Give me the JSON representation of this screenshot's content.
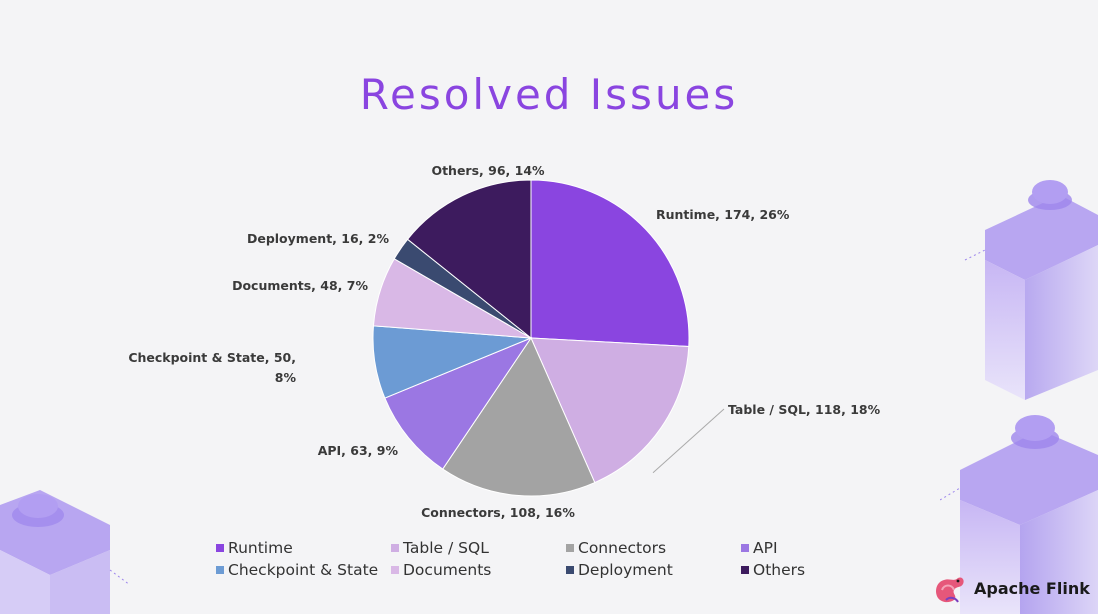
{
  "chart_data": {
    "type": "pie",
    "title": "Resolved Issues",
    "start_angle_deg": -90,
    "direction": "clockwise",
    "slices": [
      {
        "name": "Runtime",
        "value": 174,
        "percent": "26%",
        "label": "Runtime, 174, 26%",
        "color": "#8a45e0"
      },
      {
        "name": "Table / SQL",
        "value": 118,
        "percent": "18%",
        "label": "Table / SQL, 118, 18%",
        "color": "#cfaee3"
      },
      {
        "name": "Connectors",
        "value": 108,
        "percent": "16%",
        "label": "Connectors, 108, 16%",
        "color": "#a3a3a3"
      },
      {
        "name": "API",
        "value": 63,
        "percent": "9%",
        "label": "API, 63, 9%",
        "color": "#9b77e3"
      },
      {
        "name": "Checkpoint & State",
        "value": 50,
        "percent": "8%",
        "label_lines": [
          "Checkpoint & State, 50,",
          "8%"
        ],
        "color": "#6c9bd4"
      },
      {
        "name": "Documents",
        "value": 48,
        "percent": "7%",
        "label": "Documents, 48, 7%",
        "color": "#d9b8e6"
      },
      {
        "name": "Deployment",
        "value": 16,
        "percent": "2%",
        "label": "Deployment, 16, 2%",
        "color": "#3a4a70"
      },
      {
        "name": "Others",
        "value": 96,
        "percent": "14%",
        "label": "Others, 96, 14%",
        "color": "#3d1b5e"
      }
    ],
    "legend": {
      "placement": "bottom",
      "items": [
        "Runtime",
        "Table / SQL",
        "Connectors",
        "API",
        "Checkpoint & State",
        "Documents",
        "Deployment",
        "Others"
      ]
    }
  },
  "brand": {
    "name": "Apache Flink",
    "logo_icon": "squirrel-logo-icon"
  },
  "decoration": {
    "accent": "#8a45e0",
    "cube_color": "#b9a8ef"
  }
}
